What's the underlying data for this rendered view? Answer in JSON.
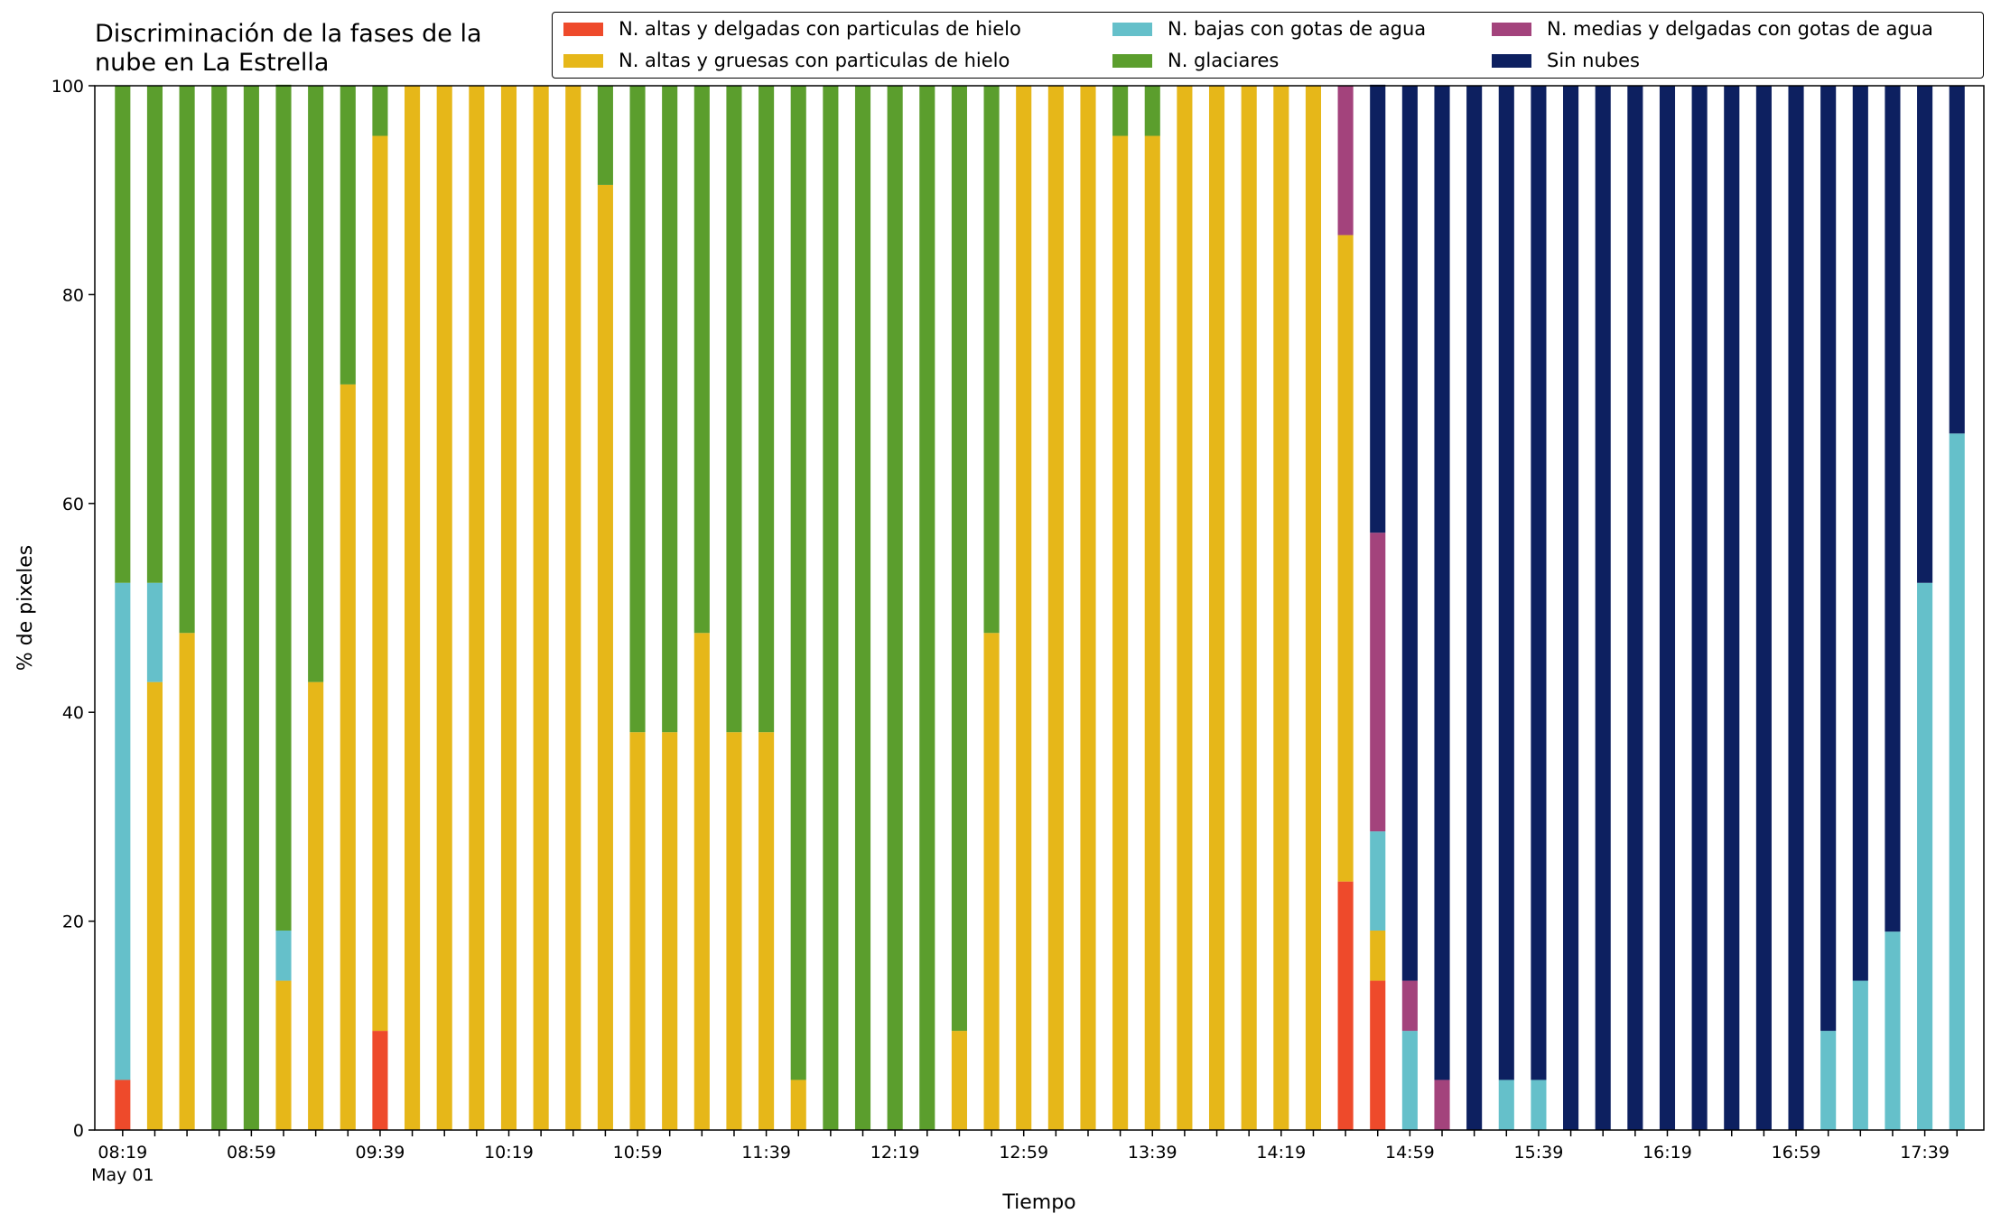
{
  "chart_data": {
    "type": "bar",
    "stacked": true,
    "title": "Discriminación de la fases de la nube en La Estrella",
    "title_lines": [
      "Discriminación de la fases de la",
      "nube en La Estrella"
    ],
    "xlabel": "Tiempo",
    "ylabel": "% de pixeles",
    "ylim": [
      0,
      100
    ],
    "yticks": [
      0,
      20,
      40,
      60,
      80,
      100
    ],
    "grid": false,
    "legend_position": "top-right",
    "x_start": "08:19",
    "x_step_minutes": 10,
    "xtick_labels": [
      "08:19",
      "08:59",
      "09:39",
      "10:19",
      "10:59",
      "11:39",
      "12:19",
      "12:59",
      "13:39",
      "14:19",
      "14:59",
      "15:39",
      "16:19",
      "16:59",
      "17:39"
    ],
    "x_date_label": "May 01",
    "series": [
      {
        "name": "N. altas y delgadas con particulas de hielo",
        "color": "#ee4a2b",
        "values": [
          4.8,
          0,
          0,
          0,
          0,
          0,
          0,
          0,
          9.5,
          0,
          0,
          0,
          0,
          0,
          0,
          0,
          0,
          0,
          0,
          0,
          0,
          0,
          0,
          0,
          0,
          0,
          0,
          0,
          0,
          0,
          0,
          0,
          0,
          0,
          0,
          0,
          0,
          0,
          23.8,
          14.3,
          0,
          0,
          0,
          0,
          0,
          0,
          0,
          0,
          0,
          0,
          0,
          0,
          0,
          0,
          0,
          0,
          0,
          0
        ]
      },
      {
        "name": "N. altas y gruesas con particulas de hielo",
        "color": "#e6b719",
        "values": [
          0,
          42.9,
          47.6,
          0,
          0,
          14.3,
          42.9,
          71.4,
          85.7,
          100,
          100,
          100,
          100,
          100,
          100,
          90.5,
          38.1,
          38.1,
          47.6,
          38.1,
          38.1,
          4.8,
          0,
          0,
          0,
          0,
          9.5,
          47.6,
          100,
          100,
          100,
          95.2,
          95.2,
          100,
          100,
          100,
          100,
          100,
          61.9,
          4.8,
          0,
          0,
          0,
          0,
          0,
          0,
          0,
          0,
          0,
          0,
          0,
          0,
          0,
          0,
          0,
          0,
          0,
          0
        ]
      },
      {
        "name": "N. bajas con gotas de agua",
        "color": "#65c0ca",
        "values": [
          47.6,
          9.5,
          0,
          0,
          0,
          4.8,
          0,
          0,
          0,
          0,
          0,
          0,
          0,
          0,
          0,
          0,
          0,
          0,
          0,
          0,
          0,
          0,
          0,
          0,
          0,
          0,
          0,
          0,
          0,
          0,
          0,
          0,
          0,
          0,
          0,
          0,
          0,
          0,
          0,
          9.5,
          9.5,
          0,
          0,
          4.8,
          4.8,
          0,
          0,
          0,
          0,
          0,
          0,
          0,
          0,
          9.5,
          14.3,
          19,
          52.4,
          66.7
        ]
      },
      {
        "name": "N. glaciares",
        "color": "#5b9e2d",
        "values": [
          47.6,
          47.6,
          52.4,
          100,
          100,
          81,
          57.1,
          28.6,
          4.8,
          0,
          0,
          0,
          0,
          0,
          0,
          9.5,
          61.9,
          61.9,
          52.4,
          61.9,
          61.9,
          95.2,
          100,
          100,
          100,
          100,
          90.5,
          52.4,
          0,
          0,
          0,
          4.8,
          4.8,
          0,
          0,
          0,
          0,
          0,
          0,
          0,
          0,
          0,
          0,
          0,
          0,
          0,
          0,
          0,
          0,
          0,
          0,
          0,
          0,
          0,
          0,
          0,
          0,
          0
        ]
      },
      {
        "name": "N. medias y delgadas con gotas de agua",
        "color": "#a3437c",
        "values": [
          0,
          0,
          0,
          0,
          0,
          0,
          0,
          0,
          0,
          0,
          0,
          0,
          0,
          0,
          0,
          0,
          0,
          0,
          0,
          0,
          0,
          0,
          0,
          0,
          0,
          0,
          0,
          0,
          0,
          0,
          0,
          0,
          0,
          0,
          0,
          0,
          0,
          0,
          14.3,
          28.6,
          4.8,
          4.8,
          0,
          0,
          0,
          0,
          0,
          0,
          0,
          0,
          0,
          0,
          0,
          0,
          0,
          0,
          0,
          0
        ]
      },
      {
        "name": "Sin nubes",
        "color": "#0d2060",
        "values": [
          0,
          0,
          0,
          0,
          0,
          0,
          0,
          0,
          0,
          0,
          0,
          0,
          0,
          0,
          0,
          0,
          0,
          0,
          0,
          0,
          0,
          0,
          0,
          0,
          0,
          0,
          0,
          0,
          0,
          0,
          0,
          0,
          0,
          0,
          0,
          0,
          0,
          0,
          0,
          42.9,
          85.7,
          95.2,
          100,
          95.2,
          95.2,
          100,
          100,
          100,
          100,
          100,
          100,
          100,
          100,
          90.5,
          85.7,
          81,
          47.6,
          33.3
        ]
      }
    ]
  }
}
